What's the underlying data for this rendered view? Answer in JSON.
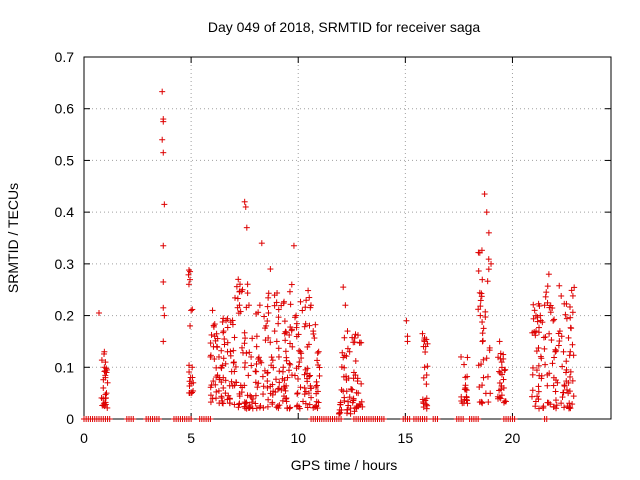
{
  "chart_data": {
    "type": "scatter",
    "title": "Day 049 of 2018, SRMTID for receiver saga",
    "xlabel": "GPS time / hours",
    "ylabel": "SRMTID / TECUs",
    "xlim": [
      0,
      24.6
    ],
    "ylim": [
      0,
      0.7
    ],
    "x_ticks": [
      0,
      5,
      10,
      15,
      20
    ],
    "y_ticks": [
      0,
      0.1,
      0.2,
      0.3,
      0.4,
      0.5,
      0.6,
      0.7
    ],
    "x_tick_labels": [
      "0",
      "5",
      "10",
      "15",
      "20"
    ],
    "y_tick_labels": [
      "0",
      "0.1",
      "0.2",
      "0.3",
      "0.4",
      "0.5",
      "0.6",
      "0.7"
    ],
    "grid": true,
    "marker": "+",
    "color": "#dd0000",
    "series": [
      {
        "name": "SRMTID",
        "x": [
          0.7,
          0.95,
          0.95,
          1.0,
          0.9,
          1.05,
          1.0,
          0.95,
          1.05,
          1.1,
          1.0,
          3.65,
          3.7,
          3.7,
          3.65,
          3.7,
          3.75,
          3.7,
          3.7,
          3.7,
          3.75,
          3.7,
          4.9,
          4.95,
          5.0,
          4.95,
          5.05,
          5.1,
          5.0,
          5.9,
          6.0,
          6.1,
          6.2,
          6.3,
          6.4,
          6.5,
          6.5,
          6.6,
          6.7,
          6.8,
          7.0,
          7.2,
          7.4,
          7.5,
          7.55,
          7.6,
          7.7,
          7.8,
          8.0,
          8.3,
          8.5,
          8.7,
          8.9,
          9.0,
          9.1,
          9.3,
          9.5,
          9.7,
          9.8,
          9.9,
          10.1,
          10.3,
          10.5,
          10.7,
          12.1,
          12.2,
          12.3,
          12.4,
          12.6,
          12.8,
          15.05,
          15.1,
          15.1,
          15.8,
          15.85,
          15.9,
          16.0,
          16.0,
          17.6,
          17.8,
          18.5,
          18.6,
          18.65,
          18.7,
          18.8,
          18.9,
          19.0,
          19.4,
          19.5,
          19.6,
          21.1,
          21.3,
          21.5,
          21.7,
          21.9,
          22.0,
          22.1,
          22.3,
          22.5,
          22.6
        ],
        "y": [
          0.205,
          0.13,
          0.1,
          0.08,
          0.06,
          0.05,
          0.04,
          0.025,
          0.09,
          0.07,
          0.11,
          0.633,
          0.58,
          0.575,
          0.54,
          0.515,
          0.415,
          0.335,
          0.265,
          0.215,
          0.2,
          0.15,
          0.288,
          0.285,
          0.21,
          0.18,
          0.1,
          0.07,
          0.05,
          0.12,
          0.21,
          0.16,
          0.14,
          0.12,
          0.1,
          0.08,
          0.06,
          0.05,
          0.13,
          0.04,
          0.11,
          0.27,
          0.25,
          0.42,
          0.41,
          0.37,
          0.22,
          0.12,
          0.03,
          0.34,
          0.18,
          0.29,
          0.17,
          0.15,
          0.12,
          0.1,
          0.08,
          0.26,
          0.335,
          0.2,
          0.13,
          0.06,
          0.05,
          0.17,
          0.255,
          0.22,
          0.17,
          0.13,
          0.09,
          0.05,
          0.19,
          0.16,
          0.15,
          0.165,
          0.14,
          0.1,
          0.04,
          0.02,
          0.12,
          0.06,
          0.2,
          0.15,
          0.08,
          0.435,
          0.4,
          0.36,
          0.3,
          0.15,
          0.11,
          0.06,
          0.17,
          0.2,
          0.22,
          0.28,
          0.19,
          0.13,
          0.07,
          0.16,
          0.09,
          0.05
        ]
      }
    ]
  }
}
